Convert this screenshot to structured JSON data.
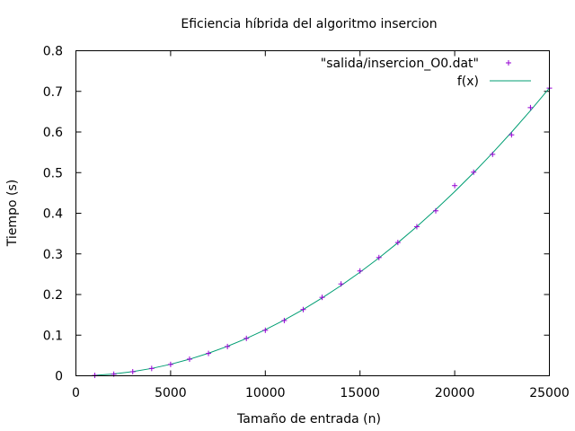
{
  "chart_data": {
    "type": "scatter",
    "title": "Eficiencia híbrida del algoritmo insercion",
    "xlabel": "Tamaño de entrada (n)",
    "ylabel": "Tiempo (s)",
    "xlim": [
      0,
      25000
    ],
    "ylim": [
      0,
      0.8
    ],
    "xticks": [
      0,
      5000,
      10000,
      15000,
      20000,
      25000
    ],
    "yticks": [
      0,
      0.1,
      0.2,
      0.3,
      0.4,
      0.5,
      0.6,
      0.7,
      0.8
    ],
    "xtick_labels": [
      "0",
      "5000",
      "10000",
      "15000",
      "20000",
      "25000"
    ],
    "ytick_labels": [
      "0",
      "0.1",
      "0.2",
      "0.3",
      "0.4",
      "0.5",
      "0.6",
      "0.7",
      "0.8"
    ],
    "grid": false,
    "legend_position": "top-right",
    "series": [
      {
        "name": "\"salida/insercion_O0.dat\"",
        "kind": "points",
        "marker": "+",
        "color": "#9400D3",
        "x": [
          1000,
          2000,
          3000,
          4000,
          5000,
          6000,
          7000,
          8000,
          9000,
          10000,
          11000,
          12000,
          13000,
          14000,
          15000,
          16000,
          17000,
          18000,
          19000,
          20000,
          21000,
          22000,
          23000,
          24000,
          25000
        ],
        "y": [
          0.001,
          0.004,
          0.01,
          0.018,
          0.028,
          0.041,
          0.055,
          0.072,
          0.092,
          0.112,
          0.136,
          0.163,
          0.193,
          0.226,
          0.258,
          0.291,
          0.328,
          0.367,
          0.406,
          0.468,
          0.501,
          0.545,
          0.593,
          0.66,
          0.708
        ]
      },
      {
        "name": "f(x)",
        "kind": "line",
        "color": "#009E73",
        "x": [
          1000,
          2000,
          3000,
          4000,
          5000,
          6000,
          7000,
          8000,
          9000,
          10000,
          11000,
          12000,
          13000,
          14000,
          15000,
          16000,
          17000,
          18000,
          19000,
          20000,
          21000,
          22000,
          23000,
          24000,
          25000
        ],
        "y": [
          0.0011,
          0.0045,
          0.0102,
          0.0181,
          0.0283,
          0.0408,
          0.0555,
          0.0725,
          0.0918,
          0.1133,
          0.1371,
          0.1632,
          0.1915,
          0.2221,
          0.255,
          0.2901,
          0.3275,
          0.3672,
          0.4091,
          0.4533,
          0.4998,
          0.5485,
          0.5995,
          0.6527,
          0.7082
        ]
      }
    ]
  }
}
